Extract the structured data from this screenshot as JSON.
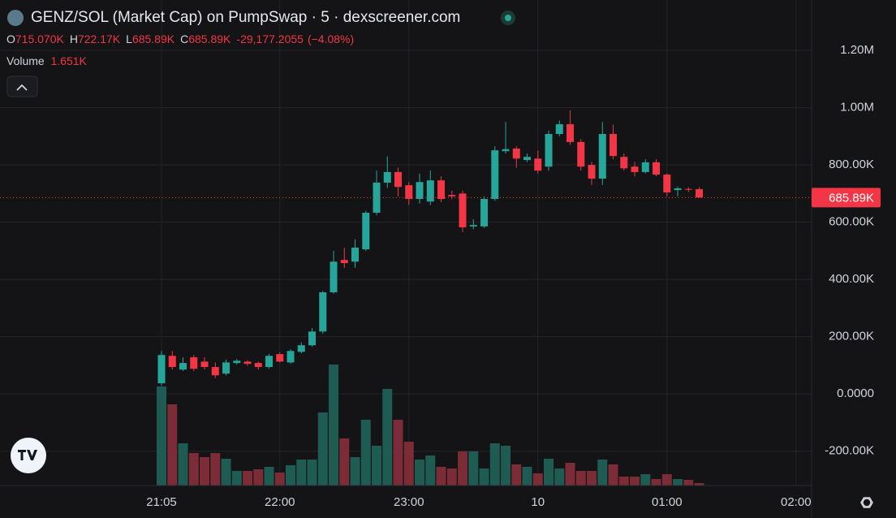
{
  "header": {
    "title": "GENZ/SOL (Market Cap) on PumpSwap · 5 · dexscreener.com",
    "ohlc": [
      {
        "key": "O",
        "value": "715.070K"
      },
      {
        "key": "H",
        "value": "722.17K"
      },
      {
        "key": "L",
        "value": "685.89K"
      },
      {
        "key": "C",
        "value": "685.89K"
      }
    ],
    "change": "-29,177.2055",
    "change_pct": "(−4.08%)"
  },
  "chart_data": {
    "type": "candlestick",
    "colors": {
      "up": "#26a69a",
      "down": "#f23645",
      "volume_up": "#1e5c53",
      "volume_down": "#7b2c36"
    },
    "open": [
      37000,
      133000,
      85000,
      128000,
      113000,
      94000,
      71000,
      108000,
      113000,
      108000,
      94000,
      139000,
      110000,
      147000,
      170000,
      218000,
      355000,
      468000,
      462000,
      505000,
      633000,
      738000,
      775000,
      729000,
      681000,
      672000,
      746000,
      695000,
      700000,
      585000,
      585000,
      681000,
      848000,
      857000,
      817000,
      822000,
      794000,
      908000,
      942000,
      880000,
      800000,
      752000,
      908000,
      828000,
      794000,
      775000,
      809000,
      766000,
      712000,
      716000,
      715070
    ],
    "high": [
      150000,
      150000,
      128000,
      136000,
      128000,
      110000,
      120000,
      122000,
      118000,
      113000,
      140000,
      145000,
      156000,
      180000,
      230000,
      360000,
      500000,
      510000,
      540000,
      640000,
      780000,
      830000,
      790000,
      740000,
      770000,
      780000,
      760000,
      710000,
      710000,
      610000,
      690000,
      865000,
      950000,
      865000,
      840000,
      850000,
      920000,
      955000,
      990000,
      890000,
      810000,
      950000,
      940000,
      840000,
      810000,
      820000,
      820000,
      770000,
      725000,
      722000,
      722170
    ],
    "low": [
      28000,
      85000,
      80000,
      80000,
      85000,
      55000,
      65000,
      102000,
      98000,
      85000,
      88000,
      110000,
      105000,
      142000,
      165000,
      210000,
      350000,
      440000,
      440000,
      500000,
      625000,
      720000,
      690000,
      660000,
      665000,
      660000,
      670000,
      680000,
      565000,
      575000,
      580000,
      675000,
      840000,
      790000,
      810000,
      770000,
      780000,
      900000,
      870000,
      780000,
      730000,
      730000,
      820000,
      780000,
      760000,
      770000,
      760000,
      690000,
      690000,
      705000,
      685890
    ],
    "close": [
      136000,
      94000,
      108000,
      88000,
      94000,
      65000,
      110000,
      116000,
      105000,
      94000,
      133000,
      113000,
      150000,
      170000,
      218000,
      355000,
      462000,
      457000,
      511000,
      633000,
      738000,
      775000,
      723000,
      681000,
      740000,
      746000,
      681000,
      690000,
      582000,
      590000,
      681000,
      851000,
      855000,
      822000,
      828000,
      780000,
      908000,
      942000,
      880000,
      794000,
      752000,
      908000,
      831000,
      788000,
      775000,
      809000,
      766000,
      704000,
      718000,
      714000,
      685890
    ],
    "volume": {
      "name": "Volume",
      "last_label": "1.651K",
      "values": [
        67100,
        55000,
        28600,
        22000,
        19250,
        22000,
        18150,
        9900,
        9900,
        11000,
        12650,
        8800,
        13750,
        17600,
        17600,
        49500,
        81950,
        31900,
        19250,
        44550,
        26950,
        65450,
        44550,
        29700,
        17600,
        20350,
        12650,
        11550,
        23100,
        23100,
        11550,
        28600,
        26950,
        14300,
        12650,
        8250,
        18150,
        11550,
        15400,
        9900,
        9900,
        17600,
        14300,
        6050,
        6050,
        7700,
        4400,
        7700,
        4400,
        3850,
        1651
      ]
    },
    "last_price": {
      "value": 685890,
      "label": "685.89K"
    },
    "ylim": [
      -320000,
      1376000
    ],
    "yticks": [
      {
        "value": 1200000,
        "label": "1.20M"
      },
      {
        "value": 1000000,
        "label": "1.00M"
      },
      {
        "value": 800000,
        "label": "800.00K"
      },
      {
        "value": 600000,
        "label": "600.00K"
      },
      {
        "value": 400000,
        "label": "400.00K"
      },
      {
        "value": 200000,
        "label": "200.00K"
      },
      {
        "value": 0,
        "label": "0.0000"
      },
      {
        "value": -200000,
        "label": "-200.00K"
      }
    ],
    "xlim": [
      -15.02,
      60.45
    ],
    "xticks": [
      {
        "value": 0,
        "label": "21:05"
      },
      {
        "value": 11,
        "label": "22:00"
      },
      {
        "value": 23,
        "label": "23:00"
      },
      {
        "value": 35,
        "label": "10"
      },
      {
        "value": 47,
        "label": "01:00"
      },
      {
        "value": 59,
        "label": "02:00"
      }
    ],
    "grid": true
  }
}
